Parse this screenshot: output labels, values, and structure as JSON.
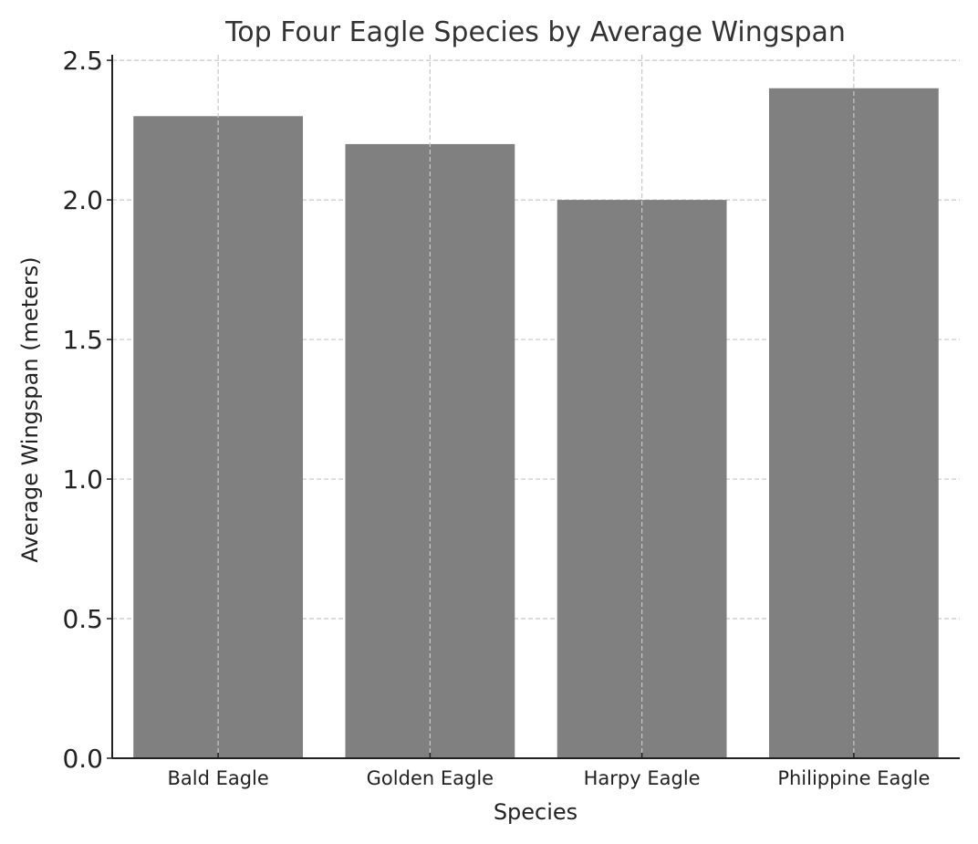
{
  "chart_data": {
    "type": "bar",
    "title": "Top Four Eagle Species by Average Wingspan",
    "xlabel": "Species",
    "ylabel": "Average Wingspan (meters)",
    "categories": [
      "Bald Eagle",
      "Golden Eagle",
      "Harpy Eagle",
      "Philippine Eagle"
    ],
    "values": [
      2.3,
      2.2,
      2.0,
      2.4
    ],
    "ylim": [
      0,
      2.52
    ],
    "yticks": [
      "0.0",
      "0.5",
      "1.0",
      "1.5",
      "2.0",
      "2.5"
    ],
    "grid": true,
    "legend": "none",
    "colors": {
      "bar": "#808080",
      "grid": "#c8c8c8",
      "axis": "#222222",
      "text": "#222222",
      "title": "#333333"
    }
  }
}
